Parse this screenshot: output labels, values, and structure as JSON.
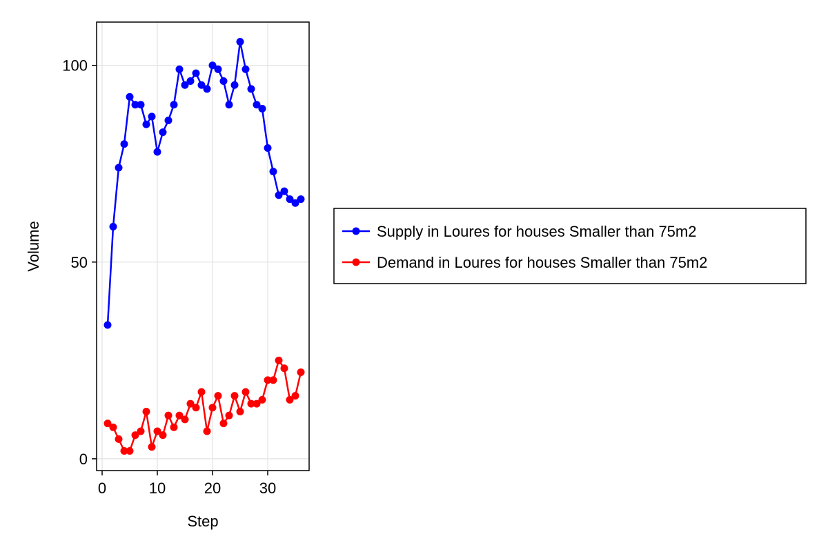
{
  "chart_data": {
    "type": "line",
    "xlabel": "Step",
    "ylabel": "Volume",
    "xlim": [
      -1,
      37.5
    ],
    "ylim": [
      -3,
      111
    ],
    "xticks": [
      0,
      10,
      20,
      30
    ],
    "yticks": [
      0,
      50,
      100
    ],
    "grid": true,
    "legend_position": "right",
    "x": [
      1,
      2,
      3,
      4,
      5,
      6,
      7,
      8,
      9,
      10,
      11,
      12,
      13,
      14,
      15,
      16,
      17,
      18,
      19,
      20,
      21,
      22,
      23,
      24,
      25,
      26,
      27,
      28,
      29,
      30,
      31,
      32,
      33,
      34,
      35,
      36
    ],
    "series": [
      {
        "name": "Supply in Loures for houses Smaller than 75m2",
        "color": "#0000ff",
        "values": [
          34,
          59,
          74,
          80,
          92,
          90,
          90,
          85,
          87,
          78,
          83,
          86,
          90,
          99,
          95,
          96,
          98,
          95,
          94,
          100,
          99,
          96,
          90,
          95,
          106,
          99,
          94,
          90,
          89,
          79,
          73,
          67,
          68,
          66,
          65,
          66
        ]
      },
      {
        "name": "Demand in Loures for houses Smaller than 75m2",
        "color": "#ff0000",
        "values": [
          9,
          8,
          5,
          2,
          2,
          6,
          7,
          12,
          3,
          7,
          6,
          11,
          8,
          11,
          10,
          14,
          13,
          17,
          7,
          13,
          16,
          9,
          11,
          16,
          12,
          17,
          14,
          14,
          15,
          20,
          20,
          25,
          23,
          15,
          16,
          22
        ]
      }
    ]
  }
}
